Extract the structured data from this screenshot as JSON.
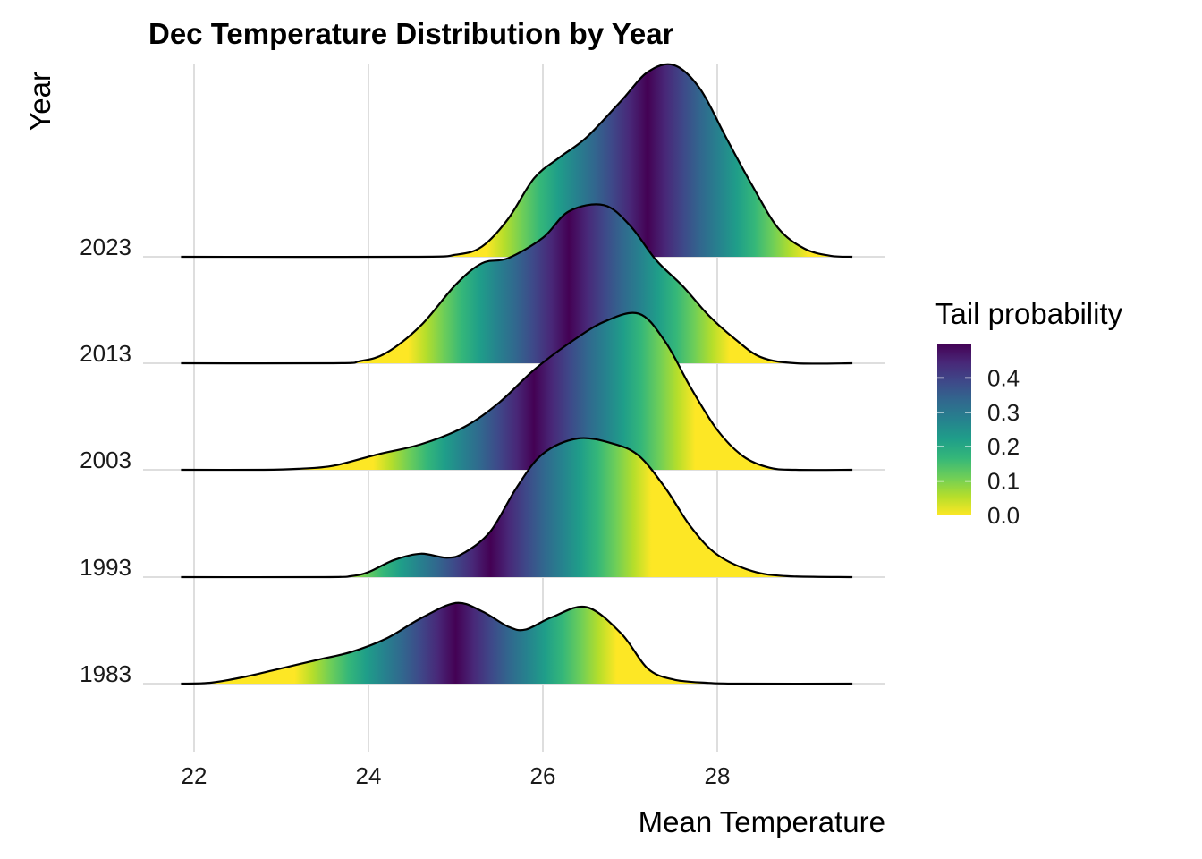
{
  "chart_data": {
    "type": "ridgeline",
    "title": "Dec Temperature Distribution by Year",
    "xlabel": "Mean Temperature",
    "ylabel": "Year",
    "xlim": [
      21.8,
      29.6
    ],
    "x_ticks": [
      22,
      24,
      26,
      28
    ],
    "x_tick_labels": [
      "22",
      "24",
      "26",
      "28"
    ],
    "grid": true,
    "categories": [
      "1983",
      "1993",
      "2003",
      "2013",
      "2023"
    ],
    "fill": "tail probability (viridis, purple at median, yellow in tails)",
    "series": [
      {
        "name": "1983",
        "medianIndex": 8,
        "points": [
          [
            21.85,
            0.0
          ],
          [
            22.2,
            0.01
          ],
          [
            22.6,
            0.07
          ],
          [
            23.0,
            0.15
          ],
          [
            23.4,
            0.23
          ],
          [
            23.8,
            0.31
          ],
          [
            24.2,
            0.44
          ],
          [
            24.6,
            0.64
          ],
          [
            25.0,
            0.79
          ],
          [
            25.3,
            0.71
          ],
          [
            25.6,
            0.56
          ],
          [
            25.8,
            0.53
          ],
          [
            26.1,
            0.65
          ],
          [
            26.5,
            0.75
          ],
          [
            26.9,
            0.49
          ],
          [
            27.2,
            0.15
          ],
          [
            27.5,
            0.04
          ],
          [
            27.9,
            0.007
          ],
          [
            28.3,
            0.0
          ],
          [
            29.55,
            0.0
          ]
        ]
      },
      {
        "name": "1993",
        "medianIndex": 8,
        "points": [
          [
            21.85,
            0.0
          ],
          [
            23.5,
            0.0
          ],
          [
            23.8,
            0.01
          ],
          [
            24.0,
            0.05
          ],
          [
            24.3,
            0.17
          ],
          [
            24.6,
            0.23
          ],
          [
            24.9,
            0.19
          ],
          [
            25.1,
            0.24
          ],
          [
            25.4,
            0.45
          ],
          [
            25.7,
            0.88
          ],
          [
            26.0,
            1.21
          ],
          [
            26.4,
            1.36
          ],
          [
            26.8,
            1.31
          ],
          [
            27.1,
            1.19
          ],
          [
            27.4,
            0.88
          ],
          [
            27.7,
            0.49
          ],
          [
            28.0,
            0.22
          ],
          [
            28.4,
            0.06
          ],
          [
            28.8,
            0.01
          ],
          [
            29.55,
            0.0
          ]
        ]
      },
      {
        "name": "2003",
        "medianIndex": 8,
        "points": [
          [
            21.85,
            0.0
          ],
          [
            22.8,
            0.0
          ],
          [
            23.2,
            0.01
          ],
          [
            23.6,
            0.04
          ],
          [
            24.1,
            0.15
          ],
          [
            24.6,
            0.25
          ],
          [
            25.1,
            0.42
          ],
          [
            25.5,
            0.66
          ],
          [
            25.9,
            0.98
          ],
          [
            26.3,
            1.24
          ],
          [
            26.7,
            1.45
          ],
          [
            27.1,
            1.53
          ],
          [
            27.4,
            1.26
          ],
          [
            27.7,
            0.8
          ],
          [
            28.0,
            0.39
          ],
          [
            28.3,
            0.13
          ],
          [
            28.6,
            0.02
          ],
          [
            28.9,
            0.0
          ],
          [
            29.55,
            0.0
          ]
        ]
      },
      {
        "name": "2013",
        "medianIndex": 9,
        "points": [
          [
            21.85,
            0.0
          ],
          [
            23.6,
            0.0
          ],
          [
            23.9,
            0.02
          ],
          [
            24.2,
            0.1
          ],
          [
            24.6,
            0.37
          ],
          [
            25.0,
            0.77
          ],
          [
            25.3,
            0.98
          ],
          [
            25.6,
            1.03
          ],
          [
            26.0,
            1.23
          ],
          [
            26.3,
            1.49
          ],
          [
            26.7,
            1.55
          ],
          [
            27.0,
            1.35
          ],
          [
            27.3,
            1.01
          ],
          [
            27.6,
            0.76
          ],
          [
            27.9,
            0.47
          ],
          [
            28.2,
            0.24
          ],
          [
            28.5,
            0.06
          ],
          [
            28.9,
            0.0
          ],
          [
            29.55,
            0.0
          ]
        ]
      },
      {
        "name": "2023",
        "medianIndex": 9,
        "points": [
          [
            21.85,
            0.0
          ],
          [
            24.5,
            0.0
          ],
          [
            25.0,
            0.02
          ],
          [
            25.3,
            0.1
          ],
          [
            25.6,
            0.37
          ],
          [
            25.9,
            0.77
          ],
          [
            26.2,
            0.98
          ],
          [
            26.5,
            1.17
          ],
          [
            26.9,
            1.53
          ],
          [
            27.2,
            1.81
          ],
          [
            27.5,
            1.88
          ],
          [
            27.8,
            1.65
          ],
          [
            28.1,
            1.17
          ],
          [
            28.4,
            0.7
          ],
          [
            28.7,
            0.28
          ],
          [
            29.0,
            0.08
          ],
          [
            29.3,
            0.01
          ],
          [
            29.55,
            0.0
          ]
        ]
      }
    ],
    "legend": {
      "title": "Tail probability",
      "position": "right",
      "range": [
        0,
        0.5
      ],
      "ticks": [
        "0.0",
        "0.1",
        "0.2",
        "0.3",
        "0.4"
      ]
    }
  }
}
